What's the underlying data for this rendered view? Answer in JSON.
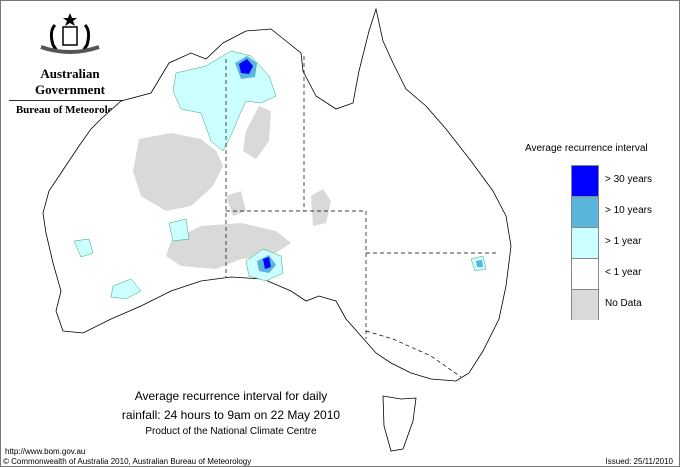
{
  "header": {
    "government": "Australian Government",
    "bureau": "Bureau of Meteorology",
    "logo_icon": "commonwealth-coat-of-arms"
  },
  "legend": {
    "title": "Average recurrence interval",
    "items": [
      {
        "label": "> 30 years",
        "color": "#0000ff"
      },
      {
        "label": "> 10 years",
        "color": "#5ab4dc"
      },
      {
        "label": "> 1 year",
        "color": "#ccffff"
      },
      {
        "label": "< 1 year",
        "color": "#ffffff"
      },
      {
        "label": "No Data",
        "color": "#d9d9d9"
      }
    ]
  },
  "title": {
    "line1": "Average recurrence interval for daily",
    "line2": "rainfall: 24 hours to 9am on 22 May 2010",
    "line3": "Product of the National Climate Centre"
  },
  "footer": {
    "url": "http://www.bom.gov.au",
    "copyright": "© Commonwealth of Australia 2010, Australian Bureau of Meteorology",
    "issued": "Issued: 25/11/2010"
  }
}
